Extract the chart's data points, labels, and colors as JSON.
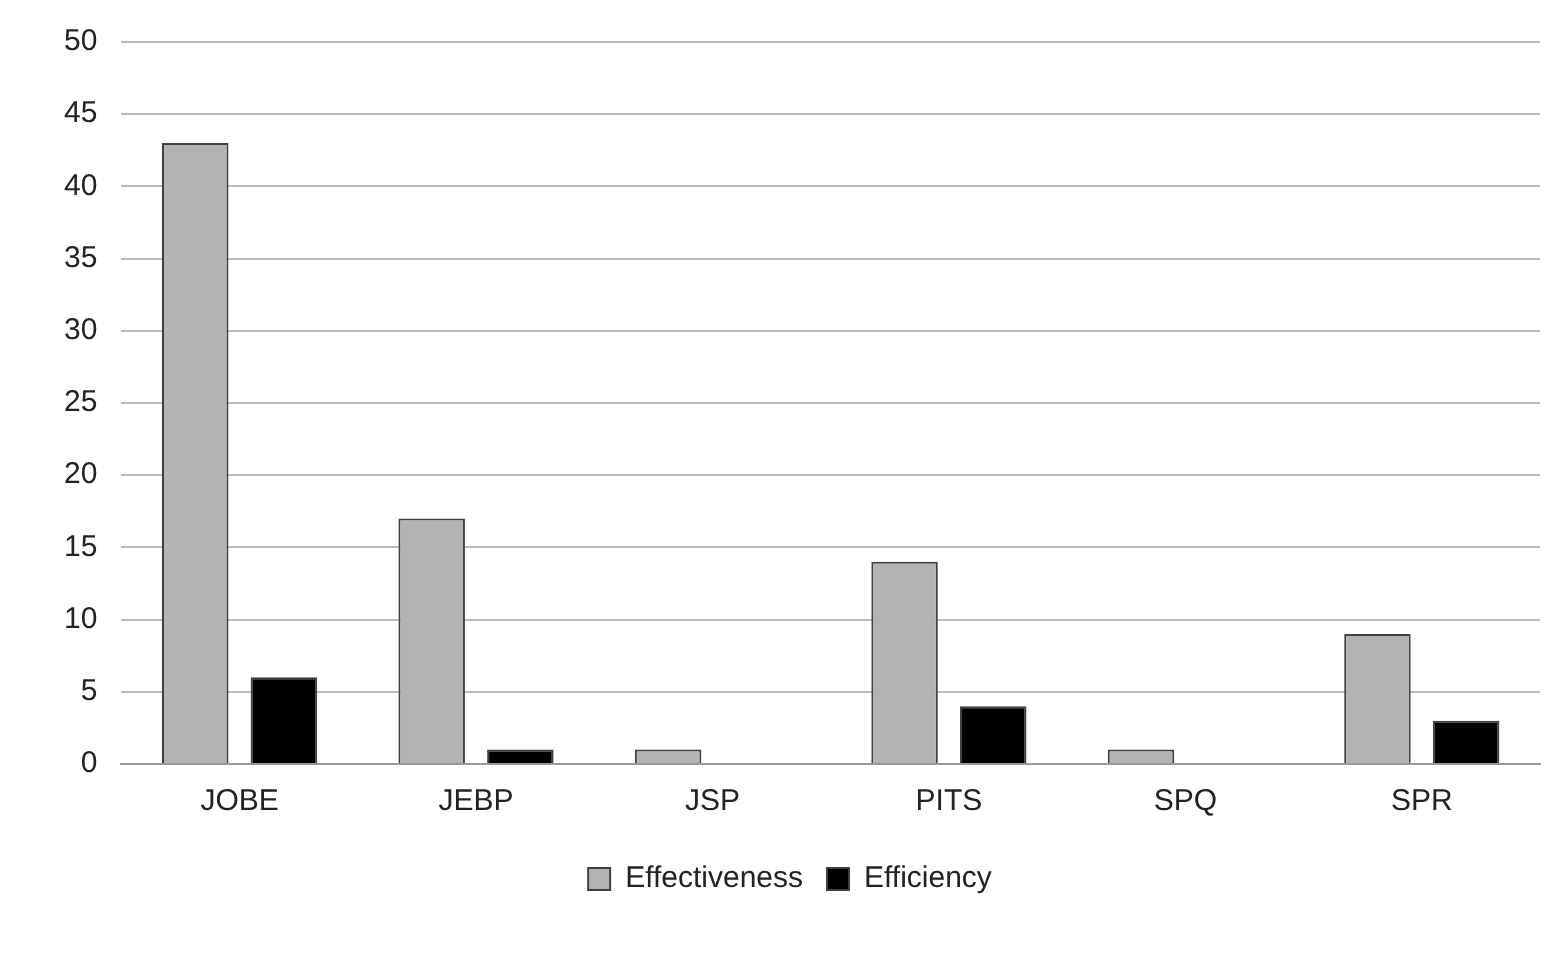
{
  "chart_data": {
    "type": "bar",
    "categories": [
      "JOBE",
      "JEBP",
      "JSP",
      "PITS",
      "SPQ",
      "SPR"
    ],
    "series": [
      {
        "name": "Effectiveness",
        "color": "#b3b3b3",
        "values": [
          43,
          17,
          1,
          14,
          1,
          9
        ]
      },
      {
        "name": "Efficiency",
        "color": "#000000",
        "values": [
          6,
          1,
          0,
          4,
          0,
          3
        ]
      }
    ],
    "ylim": [
      0,
      50
    ],
    "yticks": [
      0,
      5,
      10,
      15,
      20,
      25,
      30,
      35,
      40,
      45,
      50
    ],
    "grid": "y",
    "legend": "bottom"
  }
}
